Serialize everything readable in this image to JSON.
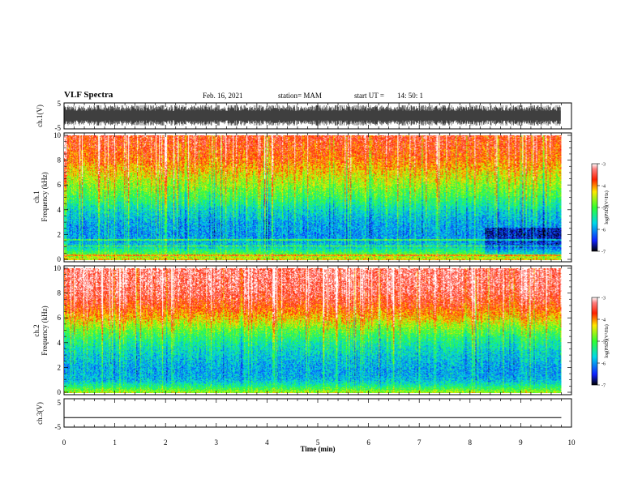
{
  "header": {
    "title": "VLF Spectra",
    "date": "Feb. 16, 2021",
    "station": "station= MAM",
    "start_ut_label": "start  UT =",
    "start_ut_value": "14: 50: 1"
  },
  "colors": {
    "red": "#ff1e00",
    "yellow": "#ffe000",
    "green": "#3cff3c",
    "cyan": "#00e0e0",
    "blue": "#1040ff",
    "black": "#000000"
  },
  "chart_data": [
    {
      "type": "line",
      "panel": "ch1-waveform",
      "ylabel": "ch.1(V)",
      "ylim": [
        -5,
        5
      ],
      "yticks": [
        5,
        -5
      ],
      "xlim": [
        0,
        10
      ],
      "x_end_min": 9.8
    },
    {
      "type": "heatmap",
      "panel": "ch1-spectrogram",
      "ylabel": "ch.1",
      "ylabel2": "Frequency  (kHz)",
      "ylim": [
        0,
        10
      ],
      "yticks": [
        0,
        2,
        4,
        6,
        8,
        10
      ],
      "xlim": [
        0,
        10
      ],
      "x_end_min": 9.8,
      "colorbar": {
        "label": "log(PSD)(V²/Hz)",
        "range": [
          -7,
          -3
        ],
        "ticks": [
          -3,
          -4,
          -5,
          -6,
          -7
        ]
      },
      "profile_freq_khz": [
        0,
        0.5,
        1,
        1.5,
        2,
        3,
        4,
        5,
        6,
        7,
        8,
        9,
        10
      ],
      "profile_log_psd": [
        -4.3,
        -5.0,
        -5.6,
        -5.9,
        -6.0,
        -5.9,
        -5.6,
        -5.1,
        -4.7,
        -4.3,
        -3.9,
        -3.7,
        -3.6
      ]
    },
    {
      "type": "heatmap",
      "panel": "ch2-spectrogram",
      "ylabel": "ch.2",
      "ylabel2": "Frequency  (kHz)",
      "ylim": [
        0,
        10
      ],
      "yticks": [
        0,
        2,
        4,
        6,
        8,
        10
      ],
      "xlim": [
        0,
        10
      ],
      "x_end_min": 9.8,
      "colorbar": {
        "label": "log(PSD)(V²/Hz)",
        "range": [
          -7,
          -3
        ],
        "ticks": [
          -3,
          -4,
          -5,
          -6,
          -7
        ]
      },
      "profile_freq_khz": [
        0,
        0.5,
        1,
        1.5,
        2,
        3,
        4,
        5,
        6,
        7,
        8,
        9,
        10
      ],
      "profile_log_psd": [
        -4.6,
        -5.3,
        -5.8,
        -5.9,
        -5.9,
        -5.7,
        -5.4,
        -4.9,
        -4.2,
        -3.7,
        -3.4,
        -3.3,
        -3.3
      ]
    },
    {
      "type": "line",
      "panel": "ch3-waveform",
      "ylabel": "ch.3(V)",
      "ylim": [
        -5,
        5
      ],
      "yticks": [
        5,
        -5
      ],
      "xlim": [
        0,
        10
      ],
      "x_end_min": 9.8,
      "constant_value": -2,
      "xlabel": "Time  (min)",
      "xticks": [
        0,
        1,
        2,
        3,
        4,
        5,
        6,
        7,
        8,
        9,
        10
      ]
    }
  ]
}
